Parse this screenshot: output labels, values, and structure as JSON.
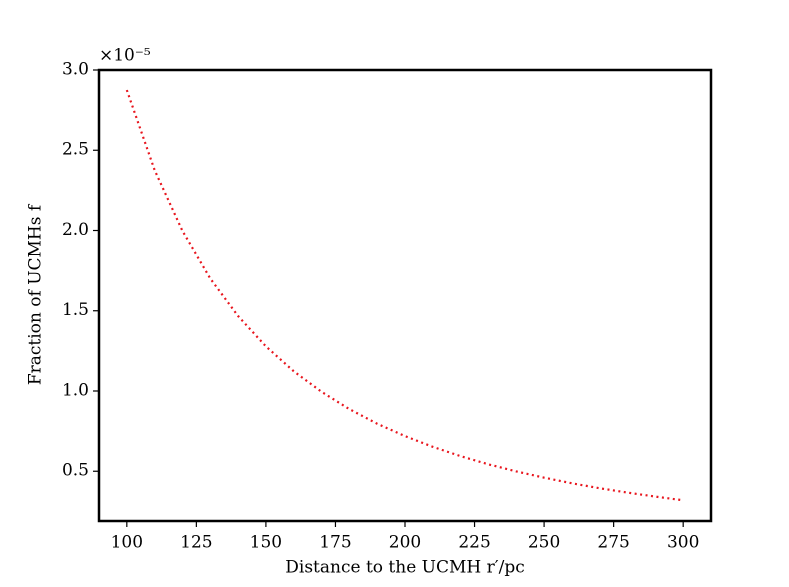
{
  "chart_data": {
    "type": "line",
    "xlabel": "Distance to the UCMH r′/pc",
    "ylabel": "Fraction of UCMHs f",
    "y_offset_label": "×10⁻⁵",
    "x": [
      100,
      110,
      120,
      130,
      140,
      150,
      160,
      170,
      180,
      190,
      200,
      210,
      220,
      230,
      240,
      250,
      260,
      270,
      280,
      290,
      300
    ],
    "series": [
      {
        "color": "#e8161e",
        "linestyle": "dotted",
        "values": [
          2.875,
          2.376,
          1.997,
          1.701,
          1.467,
          1.278,
          1.123,
          0.995,
          0.887,
          0.796,
          0.719,
          0.652,
          0.594,
          0.543,
          0.499,
          0.46,
          0.425,
          0.394,
          0.367,
          0.342,
          0.319
        ]
      }
    ],
    "xlim": [
      90,
      310
    ],
    "ylim": [
      0.19,
      3.0
    ],
    "xticks": [
      100,
      125,
      150,
      175,
      200,
      225,
      250,
      275,
      300
    ],
    "yticks": [
      0.5,
      {
        "value": 1,
        "label": "1.0"
      },
      1.5,
      {
        "value": 2,
        "label": "2.0"
      },
      2.5,
      {
        "value": 3,
        "label": "3.0"
      }
    ],
    "grid": false
  }
}
